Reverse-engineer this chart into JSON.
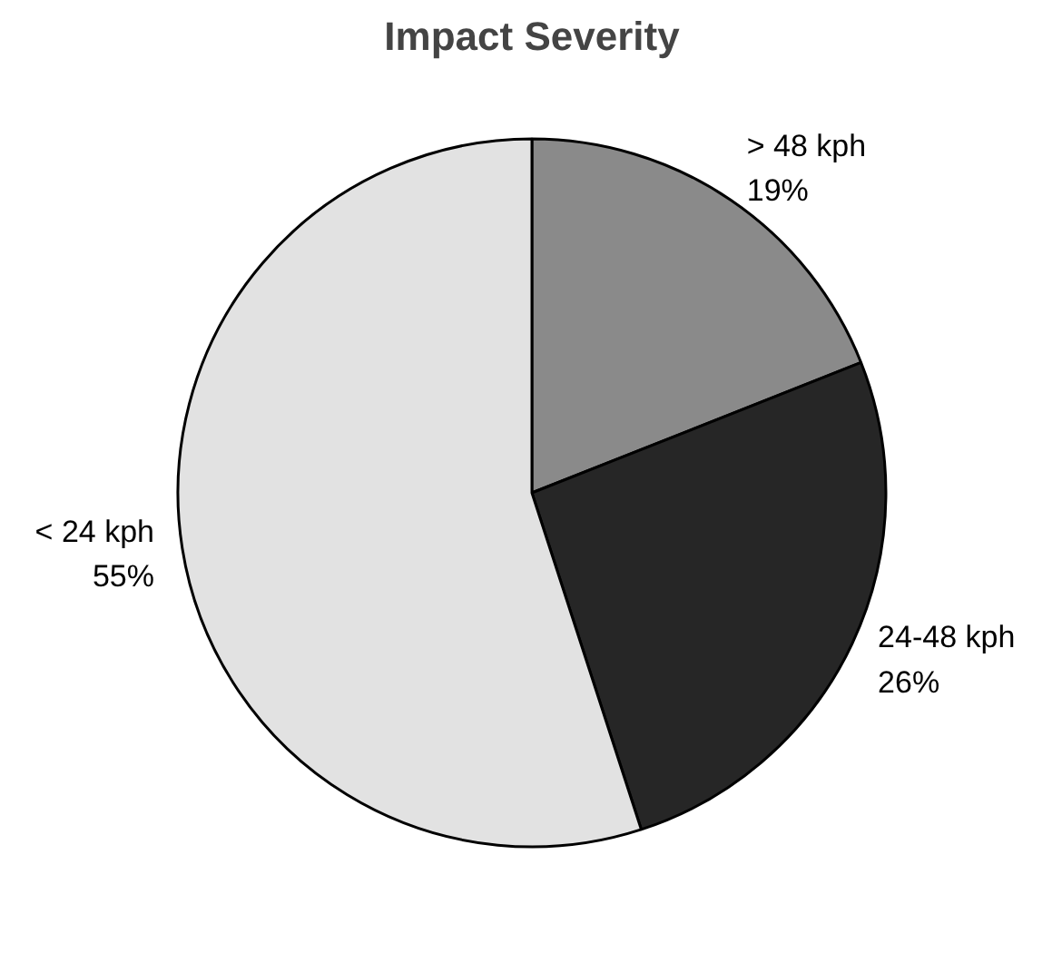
{
  "chart_data": {
    "type": "pie",
    "title": "Impact Severity",
    "categories": [
      "> 48 kph",
      "24-48 kph",
      "< 24 kph"
    ],
    "values": [
      19,
      26,
      55
    ],
    "value_labels": [
      "19%",
      "26%",
      "55%"
    ],
    "colors": [
      "#8a8a8a",
      "#262626",
      "#e2e2e2"
    ],
    "legend": false
  }
}
